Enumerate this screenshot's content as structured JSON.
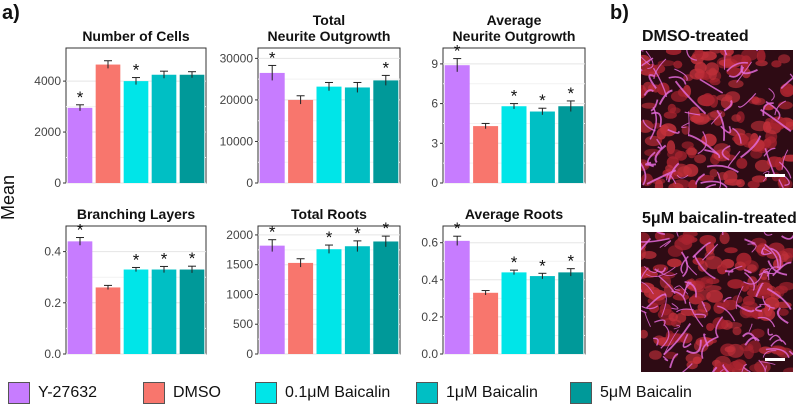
{
  "panel_a_label": "a)",
  "panel_b_label": "b)",
  "y_axis_label": "Mean",
  "colors": {
    "Y-27632": "#c77cff",
    "DMSO": "#f8766d",
    "0.1uM Baicalin": "#00e5e8",
    "1uM Baicalin": "#00bfc4",
    "5uM Baicalin": "#009999"
  },
  "legend": [
    {
      "label": "Y-27632",
      "key": "Y-27632"
    },
    {
      "label": "DMSO",
      "key": "DMSO"
    },
    {
      "label": "0.1μM Baicalin",
      "key": "0.1uM Baicalin"
    },
    {
      "label": "1μM Baicalin",
      "key": "1uM Baicalin"
    },
    {
      "label": "5μM Baicalin",
      "key": "5uM Baicalin"
    }
  ],
  "chart_data": [
    {
      "type": "bar",
      "title": "Number of Cells",
      "title2": "",
      "categories": [
        "Y-27632",
        "DMSO",
        "0.1uM Baicalin",
        "1uM Baicalin",
        "5uM Baicalin"
      ],
      "values": [
        2950,
        4650,
        4000,
        4250,
        4250
      ],
      "errors": [
        120,
        150,
        140,
        140,
        120
      ],
      "significant": [
        true,
        false,
        true,
        false,
        false
      ],
      "ylim": [
        0,
        5300
      ],
      "yticks": [
        0,
        2000,
        4000
      ]
    },
    {
      "type": "bar",
      "title": "Total",
      "title2": "Neurite Outgrowth",
      "categories": [
        "Y-27632",
        "DMSO",
        "0.1uM Baicalin",
        "1uM Baicalin",
        "5uM Baicalin"
      ],
      "values": [
        26500,
        20000,
        23200,
        23000,
        24700
      ],
      "errors": [
        1800,
        1000,
        1000,
        1200,
        1200
      ],
      "significant": [
        true,
        false,
        false,
        false,
        true
      ],
      "ylim": [
        0,
        32500
      ],
      "yticks": [
        0,
        10000,
        20000,
        30000
      ]
    },
    {
      "type": "bar",
      "title": "Average",
      "title2": "Neurite Outgrowth",
      "categories": [
        "Y-27632",
        "DMSO",
        "0.1uM Baicalin",
        "1uM Baicalin",
        "5uM Baicalin"
      ],
      "values": [
        8.9,
        4.3,
        5.8,
        5.4,
        5.8
      ],
      "errors": [
        0.5,
        0.2,
        0.2,
        0.25,
        0.4
      ],
      "significant": [
        true,
        false,
        true,
        true,
        true
      ],
      "ylim": [
        0,
        10.2
      ],
      "yticks": [
        0,
        3,
        6,
        9
      ]
    },
    {
      "type": "bar",
      "title": "Branching Layers",
      "title2": "",
      "categories": [
        "Y-27632",
        "DMSO",
        "0.1uM Baicalin",
        "1uM Baicalin",
        "5uM Baicalin"
      ],
      "values": [
        0.44,
        0.26,
        0.33,
        0.33,
        0.33
      ],
      "errors": [
        0.015,
        0.008,
        0.008,
        0.012,
        0.013
      ],
      "significant": [
        true,
        false,
        true,
        true,
        true
      ],
      "ylim": [
        0,
        0.5
      ],
      "yticks": [
        0.0,
        0.2,
        0.4
      ]
    },
    {
      "type": "bar",
      "title": "Total Roots",
      "title2": "",
      "categories": [
        "Y-27632",
        "DMSO",
        "0.1uM Baicalin",
        "1uM Baicalin",
        "5uM Baicalin"
      ],
      "values": [
        1820,
        1530,
        1760,
        1810,
        1890
      ],
      "errors": [
        100,
        70,
        70,
        90,
        90
      ],
      "significant": [
        true,
        false,
        true,
        true,
        true
      ],
      "ylim": [
        0,
        2150
      ],
      "yticks": [
        0,
        500,
        1000,
        1500,
        2000
      ]
    },
    {
      "type": "bar",
      "title": "Average Roots",
      "title2": "",
      "categories": [
        "Y-27632",
        "DMSO",
        "0.1uM Baicalin",
        "1uM Baicalin",
        "5uM Baicalin"
      ],
      "values": [
        0.61,
        0.33,
        0.44,
        0.42,
        0.44
      ],
      "errors": [
        0.025,
        0.012,
        0.012,
        0.015,
        0.02
      ],
      "significant": [
        true,
        false,
        true,
        true,
        true
      ],
      "ylim": [
        0,
        0.69
      ],
      "yticks": [
        0.0,
        0.2,
        0.4,
        0.6
      ]
    }
  ],
  "tick_labels": [
    [
      "0",
      "2000",
      "4000"
    ],
    [
      "0",
      "10000",
      "20000",
      "30000"
    ],
    [
      "0",
      "3",
      "6",
      "9"
    ],
    [
      "0.0",
      "0.2",
      "0.4"
    ],
    [
      "0",
      "500",
      "1000",
      "1500",
      "2000"
    ],
    [
      "0.0",
      "0.2",
      "0.4",
      "0.6"
    ]
  ],
  "significance_marker": "*",
  "image_panels": [
    {
      "title": "DMSO-treated"
    },
    {
      "title": "5μM baicalin-treated"
    }
  ]
}
